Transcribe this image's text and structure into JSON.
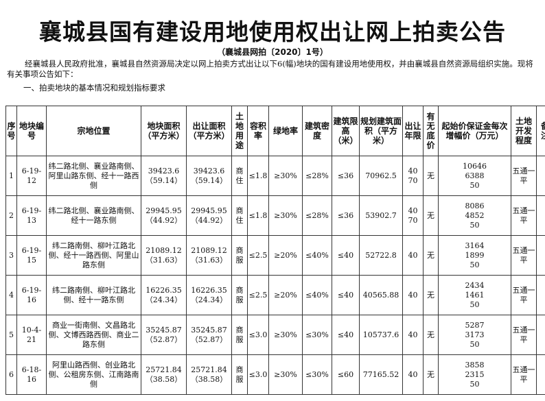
{
  "title": "襄城县国有建设用地使用权出让网上拍卖公告",
  "doc_no": "（襄城县网拍〔2020〕1号）",
  "intro": "经襄城县人民政府批准，襄城县自然资源局决定以网上拍卖方式出让以下6(幅)地块的国有建设用地使用权，并由襄城县自然资源局组织实施。现将有关事项公告如下：",
  "section1": "一、拍卖地块的基本情况和规划指标要求",
  "headers": {
    "no": "序号",
    "code": "地块编号",
    "location": "宗地位置",
    "area": "地块面积（平方米）",
    "sell_area": "出让面积（平方米）",
    "use": "土地用途",
    "far": "容积率",
    "green": "绿地率",
    "density": "建筑密度",
    "height": "建筑限高（米）",
    "plan_area": "规划建筑面积（平方米）",
    "term": "出让年限",
    "reserve": "有无底价",
    "deposit": "起始价保证金每次增幅价（万元）",
    "dev": "土地开发程度",
    "note": "备注"
  },
  "rows": [
    {
      "no": "1",
      "code": "6-19-12",
      "location": "纬二路北侧、襄业路南侧、阿里山路东侧、经十一路西侧",
      "area": "39423.6\n（59.14）",
      "sell_area": "39423.6\n（59.14）",
      "use": "商住",
      "far": "≤1.8",
      "green": "≥30%",
      "density": "≤28%",
      "height": "≤36",
      "plan_area": "70962.5",
      "term": "40\n70",
      "reserve": "无",
      "deposit": "10646\n6388\n50",
      "dev": "五通一平",
      "note": ""
    },
    {
      "no": "2",
      "code": "6-19-13",
      "location": "纬二路北侧、襄业路南侧、经十一路东侧",
      "area": "29945.95\n（44.92）",
      "sell_area": "29945.95\n（44.92）",
      "use": "商住",
      "far": "≤1.8",
      "green": "≥30%",
      "density": "≤28%",
      "height": "≤36",
      "plan_area": "53902.7",
      "term": "40\n70",
      "reserve": "无",
      "deposit": "8086\n4852\n50",
      "dev": "五通一平",
      "note": ""
    },
    {
      "no": "3",
      "code": "6-19-15",
      "location": "纬二路南侧、柳叶江路北侧、经十一路西侧、阿里山路东侧",
      "area": "21089.12\n（31.63）",
      "sell_area": "21089.12\n（31.63）",
      "use": "商服",
      "far": "≤2.5",
      "green": "≥20%",
      "density": "≤40%",
      "height": "≤40",
      "plan_area": "52722.8",
      "term": "40",
      "reserve": "无",
      "deposit": "3164\n1899\n50",
      "dev": "五通一平",
      "note": ""
    },
    {
      "no": "4",
      "code": "6-19-16",
      "location": "纬二路南侧、柳叶江路北侧、经十一路东侧",
      "area": "16226.35\n（24.34）",
      "sell_area": "16226.35\n（24.34）",
      "use": "商服",
      "far": "≤2.5",
      "green": "≥20%",
      "density": "≤40%",
      "height": "≤40",
      "plan_area": "40565.88",
      "term": "40",
      "reserve": "无",
      "deposit": "2434\n1461\n50",
      "dev": "五通一平",
      "note": ""
    },
    {
      "no": "5",
      "code": "10-4-21",
      "location": "商业一街南侧、文昌路北侧、文博西路西侧、商业二路东侧",
      "area": "35245.87\n（52.87）",
      "sell_area": "35245.87\n（52.87）",
      "use": "商服",
      "far": "≤3.0",
      "green": "≥30%",
      "density": "≤30%",
      "height": "≤40",
      "plan_area": "105737.6",
      "term": "40",
      "reserve": "无",
      "deposit": "5287\n3173\n50",
      "dev": "五通一平",
      "note": ""
    },
    {
      "no": "6",
      "code": "6-18-16",
      "location": "阿里山路西侧、创业路北侧、公租房东侧、江南路南侧",
      "area": "25721.84\n（38.58）",
      "sell_area": "25721.84\n（38.58）",
      "use": "商服",
      "far": "≤3.0",
      "green": "≥30%",
      "density": "≤30%",
      "height": "≤60",
      "plan_area": "77165.52",
      "term": "40",
      "reserve": "无",
      "deposit": "3858\n2315\n50",
      "dev": "五通一平",
      "note": ""
    }
  ]
}
